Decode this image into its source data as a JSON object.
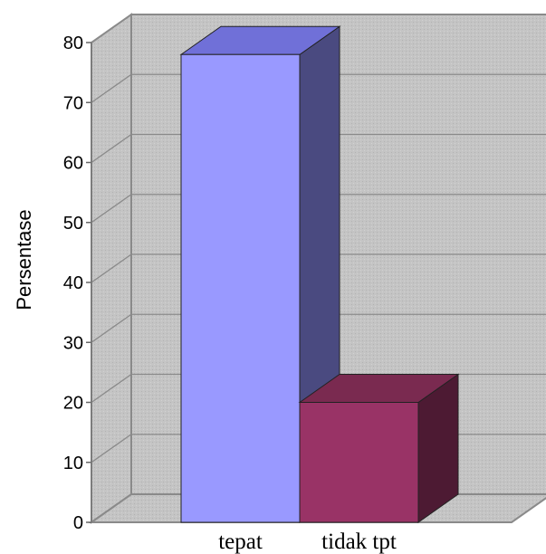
{
  "chart_data": {
    "type": "bar",
    "three_d": true,
    "categories": [
      "tepat",
      "tidak tpt"
    ],
    "values": [
      78,
      20
    ],
    "ylabel": "Persentase",
    "xlabel": "",
    "ylim": [
      0,
      80
    ],
    "yticks": [
      0,
      10,
      20,
      30,
      40,
      50,
      60,
      70,
      80
    ],
    "grid": true,
    "legend": "none",
    "colors": {
      "tepat": {
        "front": "#9999ff",
        "side": "#4a4a80",
        "top": "#7070d8"
      },
      "tidak tpt": {
        "front": "#993366",
        "side": "#4d1a33",
        "top": "#7a2a50"
      },
      "wall": "#c0c0c0",
      "gridline": "#8a8a8a"
    }
  }
}
